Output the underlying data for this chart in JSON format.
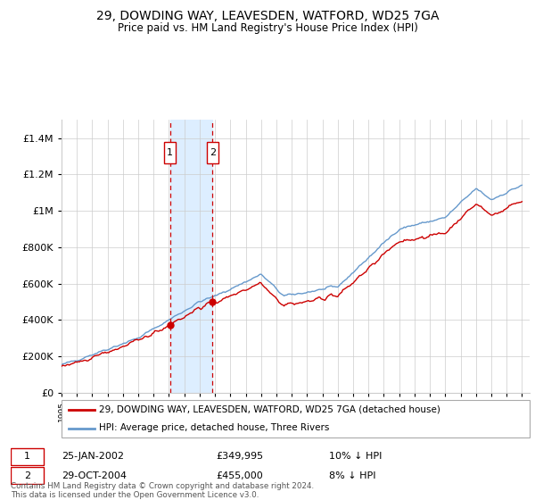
{
  "title": "29, DOWDING WAY, LEAVESDEN, WATFORD, WD25 7GA",
  "subtitle": "Price paid vs. HM Land Registry's House Price Index (HPI)",
  "legend_line1": "29, DOWDING WAY, LEAVESDEN, WATFORD, WD25 7GA (detached house)",
  "legend_line2": "HPI: Average price, detached house, Three Rivers",
  "sale1_date": "25-JAN-2002",
  "sale1_price": "£349,995",
  "sale1_hpi": "10% ↓ HPI",
  "sale2_date": "29-OCT-2004",
  "sale2_price": "£455,000",
  "sale2_hpi": "8% ↓ HPI",
  "footnote": "Contains HM Land Registry data © Crown copyright and database right 2024.\nThis data is licensed under the Open Government Licence v3.0.",
  "sale1_year": 2002.07,
  "sale2_year": 2004.83,
  "red_color": "#cc0000",
  "blue_color": "#6699cc",
  "shade_color": "#ddeeff",
  "grid_color": "#cccccc",
  "background_color": "#ffffff",
  "ylim_max": 1500000,
  "xlim_min": 1995,
  "xlim_max": 2025.5
}
